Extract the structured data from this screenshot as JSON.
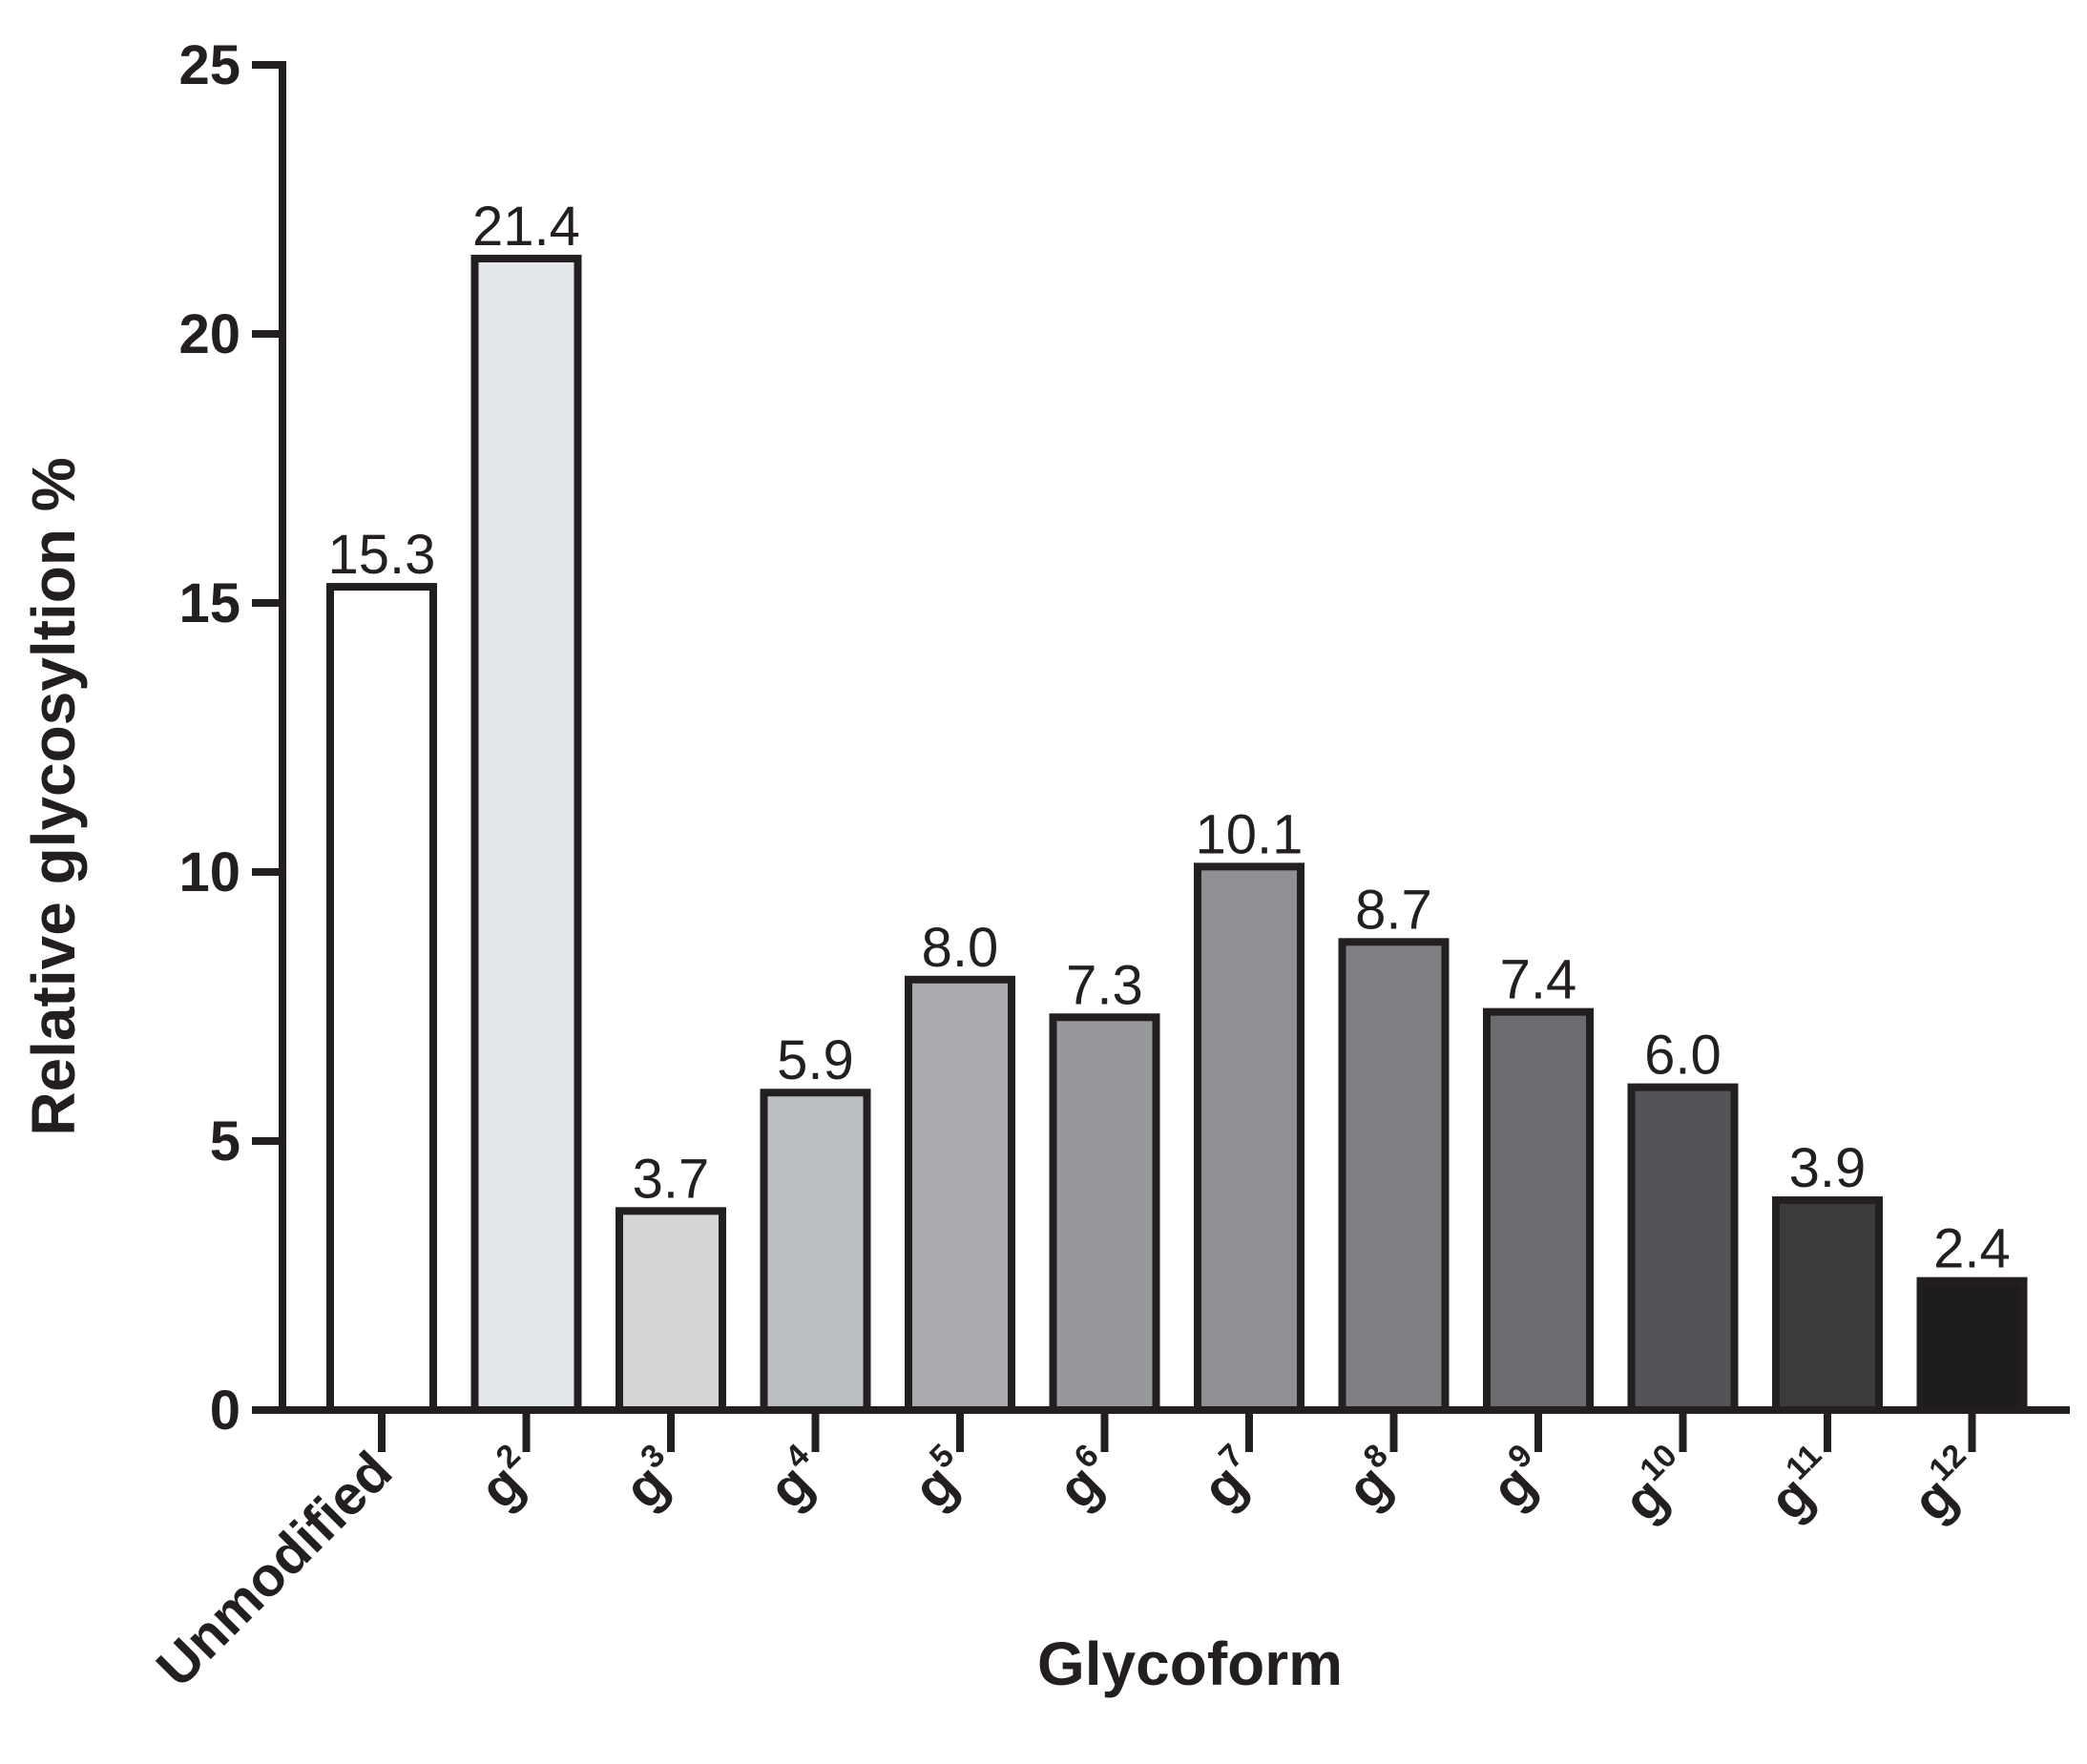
{
  "chart_data": {
    "type": "bar",
    "title": "",
    "xlabel": "Glycoform",
    "ylabel": "Relative glycosyltion %",
    "ylim": [
      0,
      25
    ],
    "yticks": [
      0,
      5,
      10,
      15,
      20,
      25
    ],
    "grid": false,
    "legend": "none",
    "categories": [
      {
        "base": "Unmodified",
        "sup": ""
      },
      {
        "base": "g",
        "sup": "2"
      },
      {
        "base": "g",
        "sup": "3"
      },
      {
        "base": "g",
        "sup": "4"
      },
      {
        "base": "g",
        "sup": "5"
      },
      {
        "base": "g",
        "sup": "6"
      },
      {
        "base": "g",
        "sup": "7"
      },
      {
        "base": "g",
        "sup": "8"
      },
      {
        "base": "g",
        "sup": "9"
      },
      {
        "base": "g",
        "sup": "10"
      },
      {
        "base": "g",
        "sup": "11"
      },
      {
        "base": "g",
        "sup": "12"
      }
    ],
    "values": [
      15.3,
      21.4,
      3.7,
      5.9,
      8.0,
      7.3,
      10.1,
      8.7,
      7.4,
      6.0,
      3.9,
      2.4
    ],
    "value_labels": [
      "15.3",
      "21.4",
      "3.7",
      "5.9",
      "8.0",
      "7.3",
      "10.1",
      "8.7",
      "7.4",
      "6.0",
      "3.9",
      "2.4"
    ],
    "bar_colors": [
      "#ffffff",
      "#e3e7ea",
      "#d3d5d7",
      "#bcbfc2",
      "#a8aaad",
      "#96989c",
      "#8e9094",
      "#7d7f83",
      "#6b6c70",
      "#525457",
      "#3a3b3d",
      "#1e1b1c"
    ]
  }
}
